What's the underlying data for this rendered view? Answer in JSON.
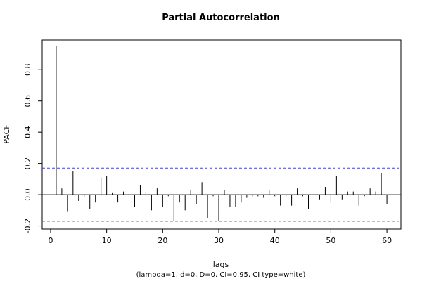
{
  "chart_data": {
    "type": "bar",
    "title": "Partial Autocorrelation",
    "xlabel": "lags",
    "ylabel": "PACF",
    "subtitle": "(lambda=1, d=0, D=0, CI=0.95, CI type=white)",
    "xlim": [
      -1.5,
      62.5
    ],
    "ylim": [
      -0.22,
      0.99
    ],
    "x_ticks": [
      0,
      10,
      20,
      30,
      40,
      50,
      60
    ],
    "y_ticks": [
      -0.2,
      0.0,
      0.2,
      0.4,
      0.6,
      0.8
    ],
    "y_tick_labels": [
      "-0.2",
      "0.0",
      "0.2",
      "0.4",
      "0.6",
      "0.8"
    ],
    "confidence_band": [
      0.17,
      -0.17
    ],
    "confidence_color": "#4444cc",
    "bar_color": "#000000",
    "lags": [
      1,
      2,
      3,
      4,
      5,
      6,
      7,
      8,
      9,
      10,
      11,
      12,
      13,
      14,
      15,
      16,
      17,
      18,
      19,
      20,
      21,
      22,
      23,
      24,
      25,
      26,
      27,
      28,
      29,
      30,
      31,
      32,
      33,
      34,
      35,
      36,
      37,
      38,
      39,
      40,
      41,
      42,
      43,
      44,
      45,
      46,
      47,
      48,
      49,
      50,
      51,
      52,
      53,
      54,
      55,
      56,
      57,
      58,
      59,
      60
    ],
    "values": [
      0.95,
      0.04,
      -0.11,
      0.15,
      -0.04,
      -0.01,
      -0.09,
      -0.05,
      0.11,
      0.12,
      0.01,
      -0.05,
      0.02,
      0.12,
      -0.08,
      0.06,
      0.02,
      -0.1,
      0.04,
      -0.08,
      -0.01,
      -0.17,
      -0.05,
      -0.1,
      0.03,
      -0.06,
      0.08,
      -0.15,
      -0.01,
      -0.17,
      0.03,
      -0.08,
      -0.08,
      -0.05,
      -0.02,
      -0.01,
      -0.01,
      -0.02,
      0.03,
      -0.01,
      -0.07,
      -0.01,
      -0.07,
      0.04,
      -0.01,
      -0.09,
      0.03,
      -0.03,
      0.05,
      -0.05,
      0.12,
      -0.03,
      0.02,
      0.02,
      -0.07,
      -0.01,
      0.04,
      0.02,
      0.14,
      -0.06
    ]
  }
}
